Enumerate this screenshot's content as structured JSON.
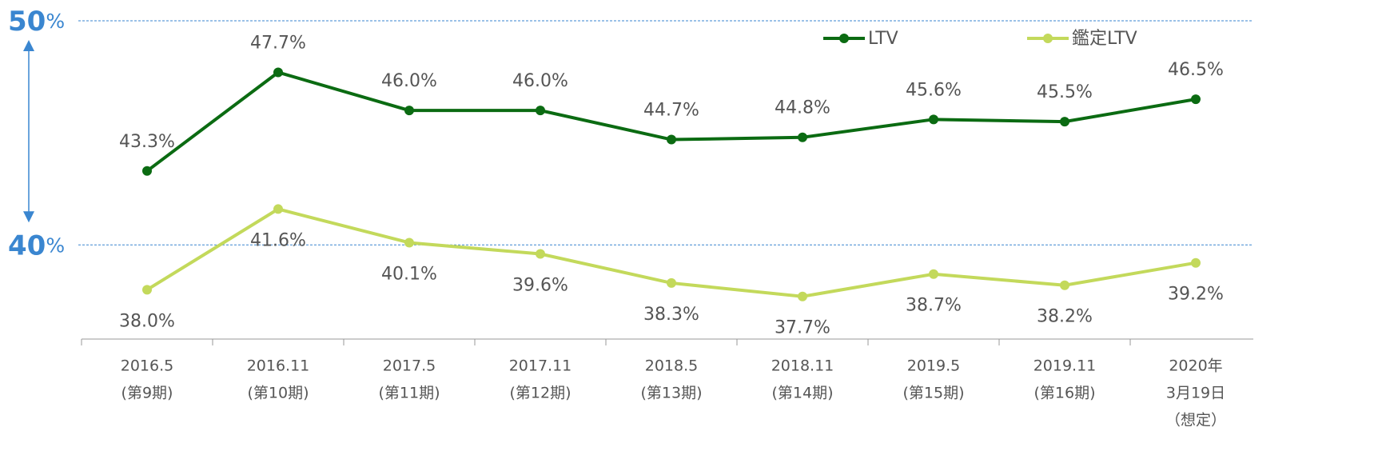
{
  "chart_data": {
    "type": "line",
    "categories": [
      [
        "2016.5",
        "(第9期)"
      ],
      [
        "2016.11",
        "(第10期)"
      ],
      [
        "2017.5",
        "(第11期)"
      ],
      [
        "2017.11",
        "(第12期)"
      ],
      [
        "2018.5",
        "(第13期)"
      ],
      [
        "2018.11",
        "(第14期)"
      ],
      [
        "2019.5",
        "(第15期)"
      ],
      [
        "2019.11",
        "(第16期)"
      ],
      [
        "2020年",
        "3月19日",
        "（想定）"
      ]
    ],
    "series": [
      {
        "name": "LTV",
        "color": "#0b6b12",
        "values": [
          43.3,
          47.7,
          46.0,
          46.0,
          44.7,
          44.8,
          45.6,
          45.5,
          46.5
        ],
        "value_labels": [
          "43.3%",
          "47.7%",
          "46.0%",
          "46.0%",
          "44.7%",
          "44.8%",
          "45.6%",
          "45.5%",
          "46.5%"
        ]
      },
      {
        "name": "鑑定LTV",
        "color": "#c3d95b",
        "values": [
          38.0,
          41.6,
          40.1,
          39.6,
          38.3,
          37.7,
          38.7,
          38.2,
          39.2
        ],
        "value_labels": [
          "38.0%",
          "41.6%",
          "40.1%",
          "39.6%",
          "38.3%",
          "37.7%",
          "38.7%",
          "38.2%",
          "39.2%"
        ]
      }
    ],
    "ylim": [
      35.8,
      50
    ],
    "yticks": [
      40,
      50
    ],
    "ytick_unit": "%",
    "grid": true,
    "legend": "top"
  }
}
